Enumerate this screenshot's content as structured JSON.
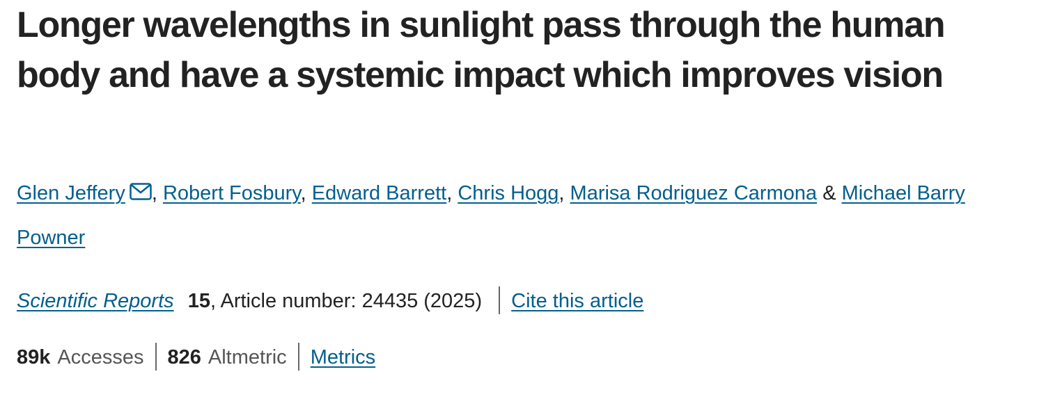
{
  "article": {
    "title": "Longer wavelengths in sunlight pass through the human body and have a systemic impact which improves vision",
    "authors": [
      "Glen Jeffery",
      "Robert Fosbury",
      "Edward Barrett",
      "Chris Hogg",
      "Marisa Rodriguez Carmona",
      "Michael Barry Powner"
    ],
    "separators": [
      ",",
      ",",
      ",",
      ",",
      "&"
    ],
    "journal": "Scientific Reports",
    "volume": "15",
    "details": ", Article number: 24435 (2025)",
    "cite": "Cite this article",
    "metrics": [
      {
        "value": "89k",
        "label": "Accesses"
      },
      {
        "value": "826",
        "label": "Altmetric"
      }
    ],
    "metrics_link": "Metrics"
  }
}
